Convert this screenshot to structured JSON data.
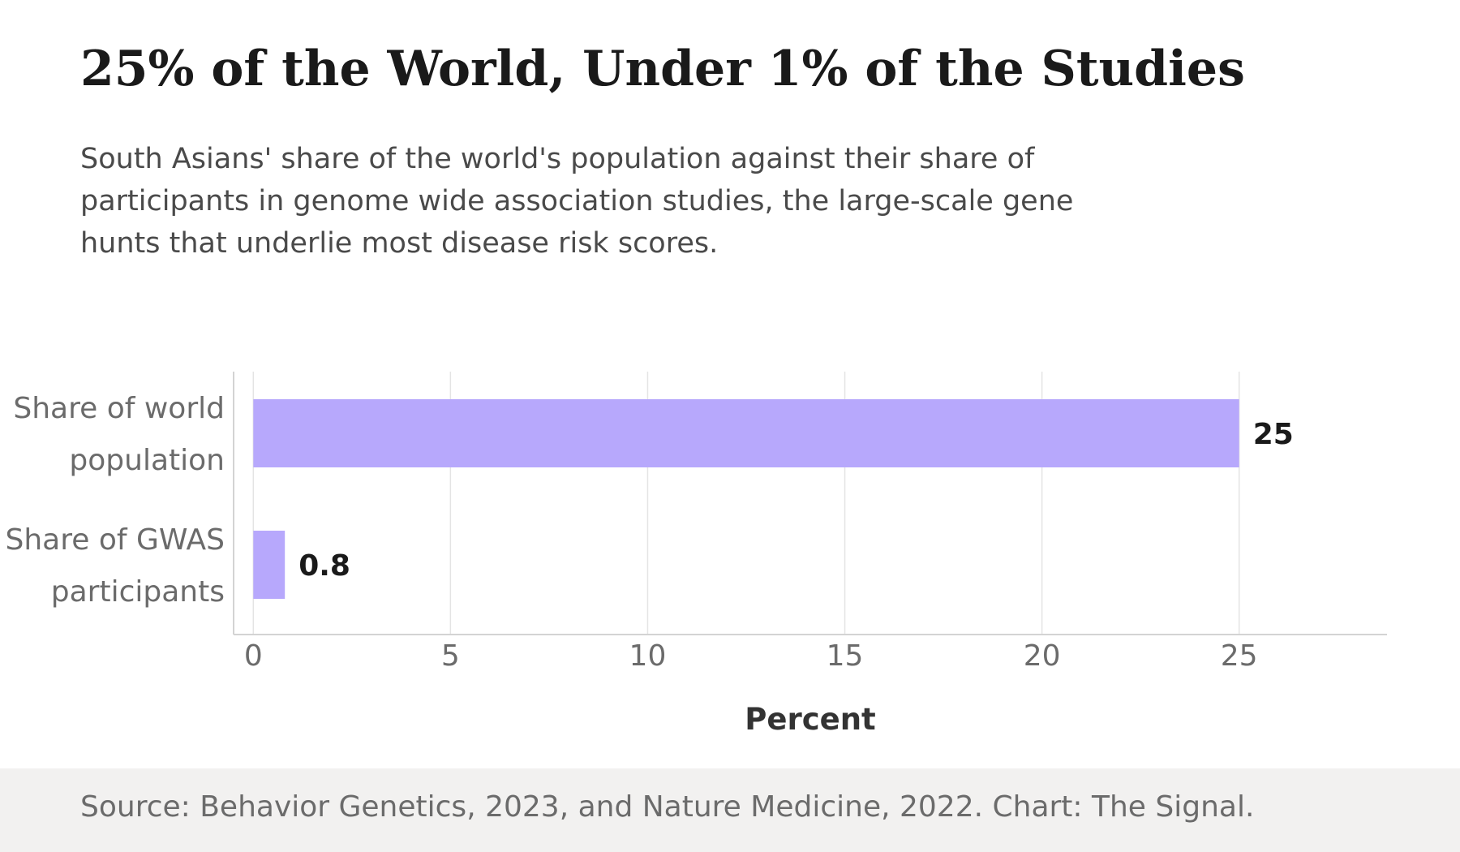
{
  "chart_data": {
    "type": "bar",
    "orientation": "horizontal",
    "title": "25% of the World, Under 1% of the Studies",
    "subtitle": "South Asians' share of the world's population against their share of participants in genome wide association studies, the large-scale gene hunts that underlie most disease risk scores.",
    "categories": [
      [
        "Share of world",
        "population"
      ],
      [
        "Share of GWAS",
        "participants"
      ]
    ],
    "values": [
      25,
      0.8
    ],
    "data_labels": [
      "25",
      "0.8"
    ],
    "xlabel": "Percent",
    "ylabel": "",
    "xlim": [
      -0.5,
      28.75
    ],
    "xticks": [
      0,
      5,
      10,
      15,
      20,
      25
    ],
    "grid": "vertical",
    "legend": "none",
    "source": "Source: Behavior Genetics, 2023, and Nature Medicine, 2022. Chart: The Signal."
  },
  "colors": {
    "bar": "#b7a8fc",
    "grid": "#e4e4e4",
    "axis": "#d3d3d3",
    "tick_text": "#6b6b6b",
    "data_label": "#1a1a1a",
    "axis_label": "#333333",
    "footer_bg": "#f2f1f0"
  }
}
